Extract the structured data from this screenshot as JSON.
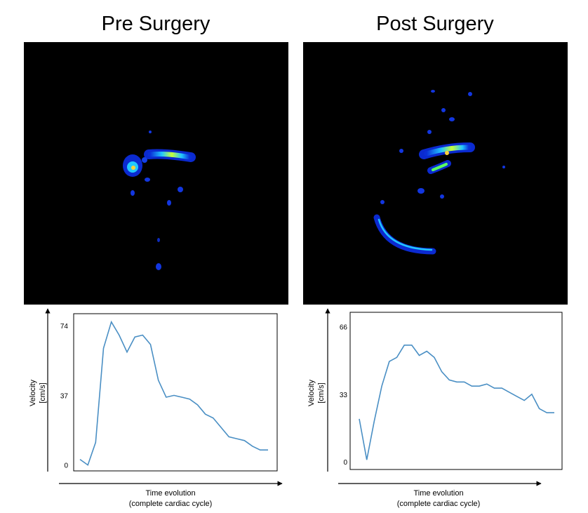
{
  "panels": [
    {
      "title": "Pre Surgery"
    },
    {
      "title": "Post Surgery"
    }
  ],
  "colors": {
    "line": "#4a8fc4",
    "image_bg": "#000000",
    "axis": "#000000"
  },
  "chart_data": [
    {
      "type": "line",
      "ylabel": "Velocity",
      "yunit": "[cm/s]",
      "xlabel": "Time evolution",
      "xsublabel": "(complete cardiac cycle)",
      "yticks": [
        0,
        37,
        74
      ],
      "ylim": [
        -2,
        80
      ],
      "xlim": [
        0,
        25
      ],
      "grid": false,
      "series": [
        {
          "x": [
            0,
            1,
            2,
            3,
            4,
            5,
            6,
            7,
            8,
            9,
            10,
            11,
            12,
            13,
            14,
            15,
            16,
            17,
            18,
            19,
            20,
            21,
            22,
            23,
            24
          ],
          "values": [
            3,
            0,
            12,
            62,
            76,
            69,
            60,
            68,
            69,
            64,
            45,
            36,
            37,
            36,
            35,
            32,
            27,
            25,
            20,
            15,
            14,
            13,
            10,
            8,
            8
          ]
        }
      ]
    },
    {
      "type": "line",
      "ylabel": "Velocity",
      "yunit": "[cm/s]",
      "xlabel": "Time evolution",
      "xsublabel": "(complete cardiac cycle)",
      "yticks": [
        0,
        33,
        66
      ],
      "ylim": [
        -2,
        72
      ],
      "xlim": [
        0,
        27
      ],
      "grid": false,
      "series": [
        {
          "x": [
            0,
            1,
            2,
            3,
            4,
            5,
            6,
            7,
            8,
            9,
            10,
            11,
            12,
            13,
            14,
            15,
            16,
            17,
            18,
            19,
            20,
            21,
            22,
            23,
            24,
            25,
            26
          ],
          "values": [
            21,
            1,
            20,
            37,
            49,
            51,
            57,
            57,
            52,
            54,
            51,
            44,
            40,
            39,
            39,
            37,
            37,
            38,
            36,
            36,
            34,
            32,
            30,
            33,
            26,
            24,
            24
          ]
        }
      ]
    }
  ]
}
